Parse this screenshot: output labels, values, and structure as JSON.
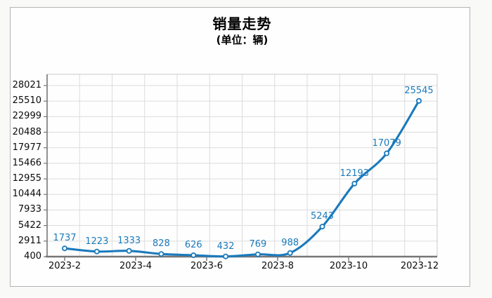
{
  "chart_data": {
    "type": "line",
    "title": "销量走势",
    "subtitle": "(单位：辆)",
    "values": [
      1737,
      1223,
      1333,
      828,
      626,
      432,
      769,
      988,
      5243,
      12193,
      17079,
      25545
    ],
    "x_tick_labels": [
      "2023-2",
      "2023-4",
      "2023-6",
      "2023-8",
      "2023-10",
      "2023-12"
    ],
    "y_tick_values": [
      400,
      2911,
      5422,
      7933,
      10444,
      12955,
      15466,
      17977,
      20488,
      22999,
      25510,
      28021
    ],
    "ylim": [
      400,
      28021
    ],
    "xlabel": "",
    "ylabel": "",
    "legend": "none",
    "grid": true,
    "marker": "open-circle",
    "colors": {
      "line": "#1a7abc",
      "point_label": "#1a7abc",
      "grid_line": "#dcdcdc",
      "axis_line": "#767676",
      "tick_text": "#0a0a0a",
      "frame_border": "#b3b3b3",
      "plot_border": "#c9c9c9",
      "background": "#fefefe"
    }
  }
}
